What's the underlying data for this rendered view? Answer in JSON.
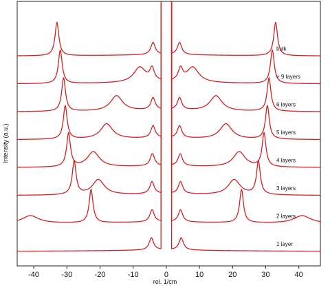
{
  "chart_data": {
    "type": "line",
    "title": "",
    "xlabel": "rel. 1/cm",
    "ylabel": "Intensity (a.u.)",
    "xlim": [
      -45,
      46.5
    ],
    "x_ticks": [
      -40,
      -30,
      -20,
      -10,
      0,
      10,
      20,
      30,
      40
    ],
    "grid": false,
    "line_color": "#d42020",
    "series": [
      {
        "name": "1 layer",
        "offset": 0,
        "shear_peak": null,
        "breathing_peak": null,
        "central_peak": 4.5
      },
      {
        "name": "2 layers",
        "offset": 1,
        "shear_peak": 22.7,
        "breathing_peak": 41.0,
        "central_peak": 4.3
      },
      {
        "name": "3 layers",
        "offset": 2,
        "shear_peak": 27.8,
        "breathing_peak": 20.5,
        "central_peak": 4.3
      },
      {
        "name": "4 layers",
        "offset": 3,
        "shear_peak": 29.5,
        "breathing_peak": 22.0,
        "central_peak": 4.2
      },
      {
        "name": "5 layers",
        "offset": 4,
        "shear_peak": 30.5,
        "breathing_peak": 18.0,
        "central_peak": 4.0
      },
      {
        "name": "6 layers",
        "offset": 5,
        "shear_peak": 31.0,
        "breathing_peak": 15.0,
        "central_peak": 4.0
      },
      {
        "name": "> 9 layers",
        "offset": 6,
        "shear_peak": 32.0,
        "breathing_peak": 8.0,
        "central_peak": 4.3
      },
      {
        "name": "bulk",
        "offset": 7,
        "shear_peak": 33.0,
        "breathing_peak": null,
        "central_peak": 4.0
      }
    ]
  }
}
